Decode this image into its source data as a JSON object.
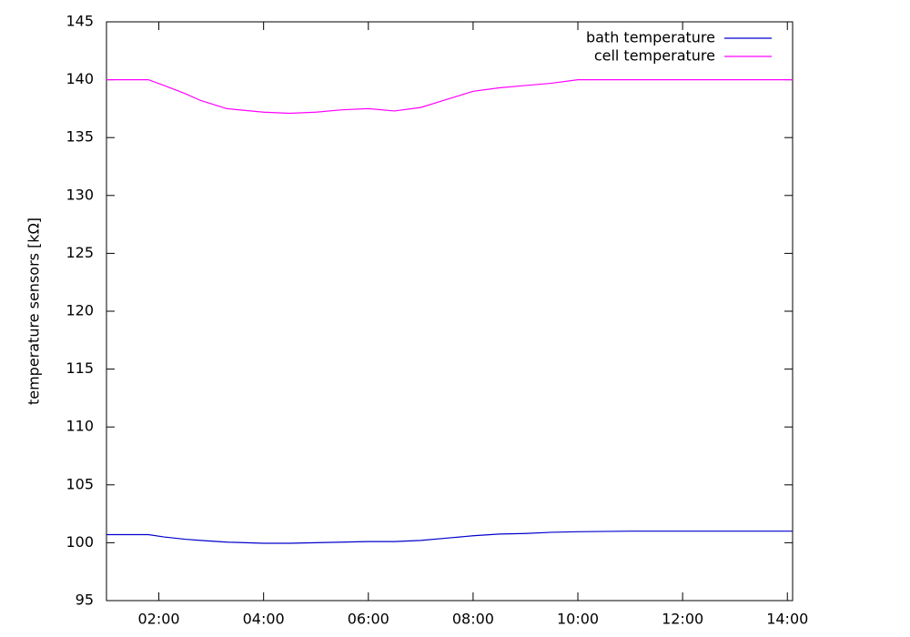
{
  "chart_data": {
    "type": "line",
    "y_label": "temperature sensors [kΩ]",
    "x": [
      1,
      1.5,
      1.8,
      2.1,
      2.5,
      2.8,
      3.3,
      4,
      4.5,
      5,
      5.5,
      6,
      6.5,
      7,
      7.5,
      8,
      8.5,
      9,
      9.5,
      10,
      11,
      12,
      13,
      14.1
    ],
    "series": [
      {
        "name": "bath temperature",
        "color": "#0000cc",
        "values": [
          100.7,
          100.7,
          100.7,
          100.5,
          100.3,
          100.2,
          100.05,
          99.95,
          99.95,
          100,
          100.05,
          100.1,
          100.1,
          100.2,
          100.4,
          100.6,
          100.75,
          100.8,
          100.9,
          100.95,
          101,
          101,
          101,
          101
        ]
      },
      {
        "name": "cell temperature",
        "color": "#ff00ff",
        "values": [
          140,
          140,
          140,
          139.5,
          138.8,
          138.2,
          137.5,
          137.2,
          137.1,
          137.2,
          137.4,
          137.5,
          137.3,
          137.6,
          138.3,
          139,
          139.3,
          139.5,
          139.7,
          140,
          140,
          140,
          140,
          140
        ]
      }
    ],
    "xlim": [
      1,
      14.1
    ],
    "xticks": [
      {
        "value": 2,
        "label": "02:00"
      },
      {
        "value": 4,
        "label": "04:00"
      },
      {
        "value": 6,
        "label": "06:00"
      },
      {
        "value": 8,
        "label": "08:00"
      },
      {
        "value": 10,
        "label": "10:00"
      },
      {
        "value": 12,
        "label": "12:00"
      },
      {
        "value": 14,
        "label": "14:00"
      }
    ],
    "ylim": [
      95,
      145
    ],
    "yticks": [
      95,
      100,
      105,
      110,
      115,
      120,
      125,
      130,
      135,
      140,
      145
    ],
    "grid": false,
    "legend_position": "top-right"
  }
}
